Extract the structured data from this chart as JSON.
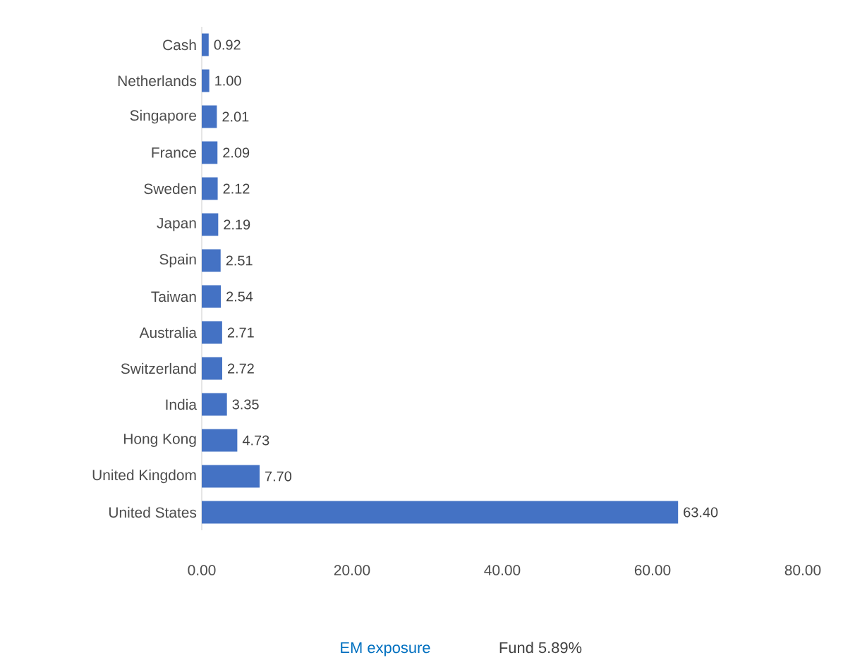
{
  "chart_data": {
    "type": "bar",
    "orientation": "horizontal",
    "categories": [
      "Cash",
      "Netherlands",
      "Singapore",
      "France",
      "Sweden",
      "Japan",
      "Spain",
      "Taiwan",
      "Australia",
      "Switzerland",
      "India",
      "Hong Kong",
      "United Kingdom",
      "United States"
    ],
    "values": [
      0.92,
      1.0,
      2.01,
      2.09,
      2.12,
      2.19,
      2.51,
      2.54,
      2.71,
      2.72,
      3.35,
      4.73,
      7.7,
      63.4
    ],
    "value_labels": [
      "0.92",
      "1.00",
      "2.01",
      "2.09",
      "2.12",
      "2.19",
      "2.51",
      "2.54",
      "2.71",
      "2.72",
      "3.35",
      "4.73",
      "7.70",
      "63.40"
    ],
    "color": "#4472c4",
    "xlim": [
      0,
      80
    ],
    "xticks": [
      {
        "value": 0,
        "label": "0.00"
      },
      {
        "value": 20,
        "label": "20.00"
      },
      {
        "value": 40,
        "label": "40.00"
      },
      {
        "value": 60,
        "label": "60.00"
      },
      {
        "value": 80,
        "label": "80.00"
      }
    ],
    "annotations": [
      "EM exposure",
      "Fund 5.89%"
    ]
  }
}
